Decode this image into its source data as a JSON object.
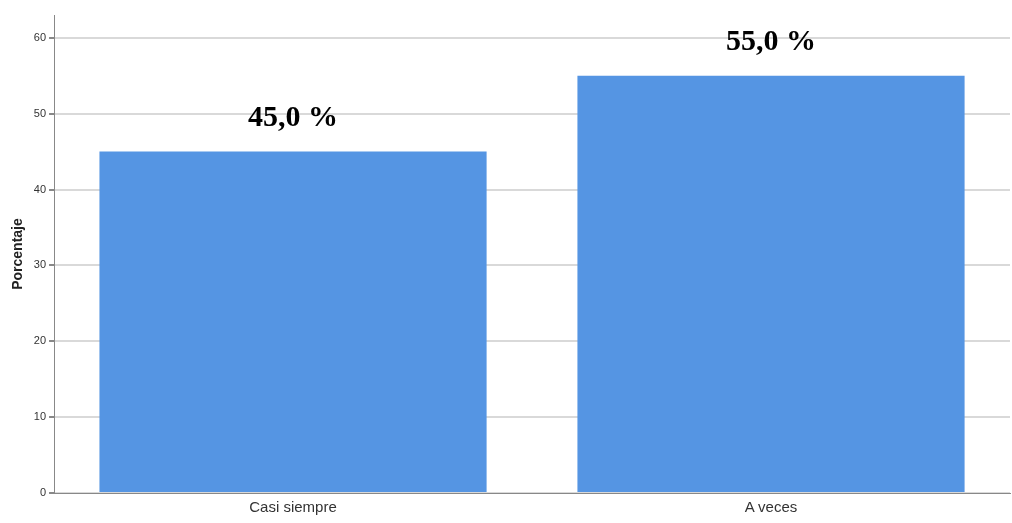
{
  "chart_data": {
    "type": "bar",
    "ylabel": "Porcentaje",
    "categories": [
      "Casi siempre",
      "A veces"
    ],
    "values": [
      45.0,
      55.0
    ],
    "value_labels": [
      "45,0 %",
      "55,0 %"
    ],
    "color": "#5595e3",
    "ylim": [
      0,
      63
    ],
    "yticks": [
      0,
      10,
      20,
      30,
      40,
      50,
      60
    ],
    "grid": "y"
  }
}
